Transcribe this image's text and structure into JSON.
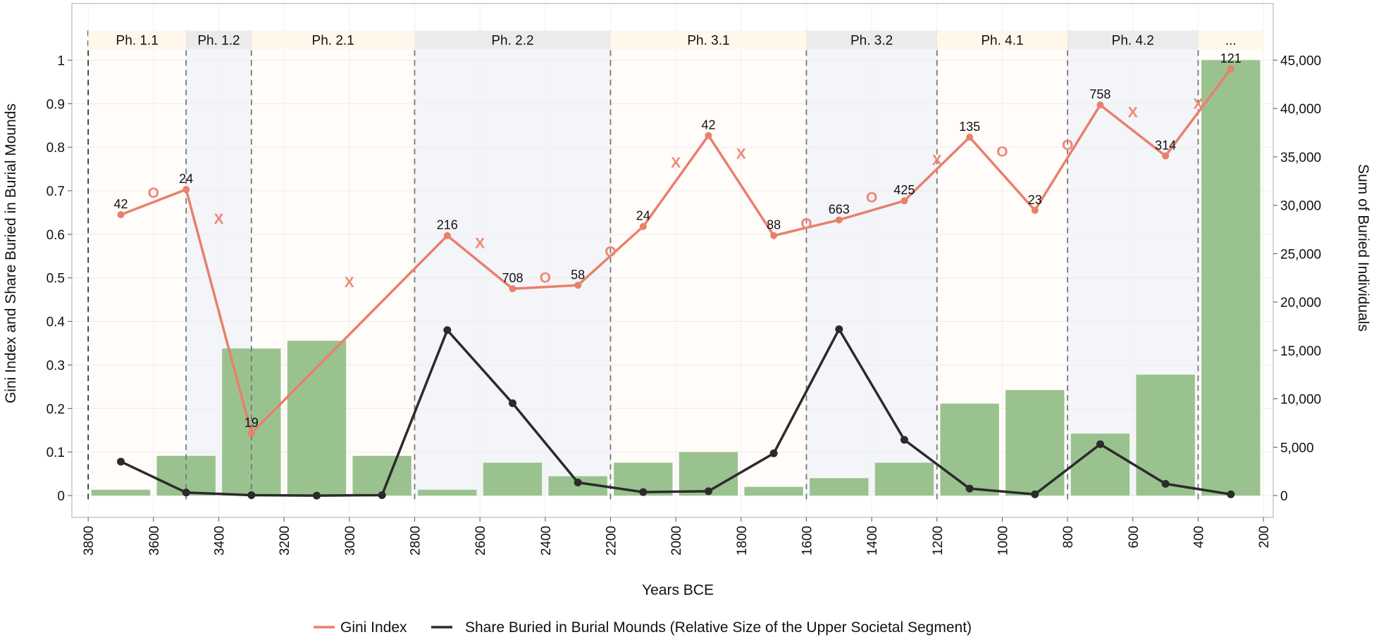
{
  "chart_data": {
    "type": "bar+line",
    "xlabel": "Years BCE",
    "ylabel_left": "Gini Index and Share Buried in Burial Mounds",
    "ylabel_right": "Sum of Buried Individuals",
    "x_range": [
      3850,
      170
    ],
    "x_ticks": [
      3800,
      3600,
      3400,
      3200,
      3000,
      2800,
      2600,
      2400,
      2200,
      2000,
      1800,
      1600,
      1400,
      1200,
      1000,
      800,
      600,
      400,
      200
    ],
    "x_tick_labels": [
      "3800",
      "3600",
      "3400",
      "3200",
      "3000",
      "2800",
      "2600",
      "2400",
      "2200",
      "2000",
      "1800",
      "1600",
      "1400",
      "1200",
      "1000",
      "800",
      "600",
      "400",
      "200"
    ],
    "y_left_range": [
      -0.05,
      1.13
    ],
    "y_left_ticks": [
      0,
      0.1,
      0.2,
      0.3,
      0.4,
      0.5,
      0.6,
      0.7,
      0.8,
      0.9,
      1
    ],
    "y_left_tick_labels": [
      "0",
      "0.1",
      "0.2",
      "0.3",
      "0.4",
      "0.5",
      "0.6",
      "0.7",
      "0.8",
      "0.9",
      "1"
    ],
    "y_right_range": [
      -2250,
      50850
    ],
    "y_right_ticks": [
      0,
      5000,
      10000,
      15000,
      20000,
      25000,
      30000,
      35000,
      40000,
      45000
    ],
    "y_right_tick_labels": [
      "0",
      "5,000",
      "10,000",
      "15,000",
      "20,000",
      "25,000",
      "30,000",
      "35,000",
      "40,000",
      "45,000"
    ],
    "phases": [
      {
        "label": "Ph. 1.1",
        "start": 3800,
        "end": 3500,
        "shade": "light"
      },
      {
        "label": "Ph. 1.2",
        "start": 3500,
        "end": 3300,
        "shade": "grey"
      },
      {
        "label": "Ph. 2.1",
        "start": 3300,
        "end": 2800,
        "shade": "light"
      },
      {
        "label": "Ph. 2.2",
        "start": 2800,
        "end": 2200,
        "shade": "grey"
      },
      {
        "label": "Ph. 3.1",
        "start": 2200,
        "end": 1600,
        "shade": "light"
      },
      {
        "label": "Ph. 3.2",
        "start": 1600,
        "end": 1200,
        "shade": "grey"
      },
      {
        "label": "Ph. 4.1",
        "start": 1200,
        "end": 800,
        "shade": "light"
      },
      {
        "label": "Ph. 4.2",
        "start": 800,
        "end": 400,
        "shade": "grey"
      },
      {
        "label": "...",
        "start": 400,
        "end": 200,
        "shade": "light"
      }
    ],
    "bars": {
      "name": "Sum of Buried Individuals",
      "x": [
        3700,
        3500,
        3300,
        3100,
        2900,
        2700,
        2500,
        2300,
        2100,
        1900,
        1700,
        1500,
        1300,
        1100,
        900,
        700,
        500,
        300
      ],
      "values": [
        600,
        4100,
        15200,
        16000,
        4100,
        600,
        3400,
        2000,
        3400,
        4500,
        900,
        1800,
        3400,
        9500,
        10900,
        6400,
        12500,
        45000
      ]
    },
    "series": [
      {
        "name": "Gini Index",
        "color": "#e8806c",
        "x": [
          3700,
          3500,
          3300,
          2700,
          2500,
          2300,
          2100,
          1900,
          1700,
          1500,
          1300,
          1100,
          900,
          700,
          500,
          300
        ],
        "values": [
          0.645,
          0.703,
          0.143,
          0.597,
          0.475,
          0.483,
          0.618,
          0.827,
          0.597,
          0.633,
          0.677,
          0.823,
          0.655,
          0.897,
          0.78,
          0.98
        ],
        "n_labels": [
          "42",
          "24",
          "19",
          "216",
          "708",
          "58",
          "24",
          "42",
          "88",
          "663",
          "425",
          "135",
          "23",
          "758",
          "314",
          "121"
        ]
      },
      {
        "name": "Share Buried in Burial Mounds (Relative Size of the Upper Societal Segment)",
        "color": "#2b2b2b",
        "x": [
          3700,
          3500,
          3300,
          3100,
          2900,
          2700,
          2500,
          2300,
          2100,
          1900,
          1700,
          1500,
          1300,
          1100,
          900,
          700,
          500,
          300
        ],
        "values": [
          0.078,
          0.007,
          0.001,
          0.0,
          0.001,
          0.38,
          0.212,
          0.03,
          0.008,
          0.01,
          0.097,
          0.382,
          0.128,
          0.016,
          0.003,
          0.118,
          0.027,
          0.003
        ]
      }
    ],
    "significance_marks": [
      {
        "x": 3600,
        "y": 0.695,
        "mark": "O"
      },
      {
        "x": 3400,
        "y": 0.635,
        "mark": "X"
      },
      {
        "x": 3000,
        "y": 0.49,
        "mark": "X"
      },
      {
        "x": 2600,
        "y": 0.58,
        "mark": "X"
      },
      {
        "x": 2400,
        "y": 0.5,
        "mark": "O"
      },
      {
        "x": 2200,
        "y": 0.56,
        "mark": "O"
      },
      {
        "x": 2000,
        "y": 0.765,
        "mark": "X"
      },
      {
        "x": 1800,
        "y": 0.785,
        "mark": "X"
      },
      {
        "x": 1600,
        "y": 0.625,
        "mark": "O"
      },
      {
        "x": 1400,
        "y": 0.685,
        "mark": "O"
      },
      {
        "x": 1200,
        "y": 0.77,
        "mark": "X"
      },
      {
        "x": 1000,
        "y": 0.79,
        "mark": "O"
      },
      {
        "x": 800,
        "y": 0.805,
        "mark": "O"
      },
      {
        "x": 600,
        "y": 0.88,
        "mark": "X"
      },
      {
        "x": 400,
        "y": 0.9,
        "mark": "X"
      }
    ]
  },
  "legend": {
    "items": [
      {
        "label": "Gini Index",
        "color": "#e8806c"
      },
      {
        "label": "Share Buried in Burial Mounds (Relative Size of the Upper Societal Segment)",
        "color": "#2b2b2b"
      }
    ]
  }
}
